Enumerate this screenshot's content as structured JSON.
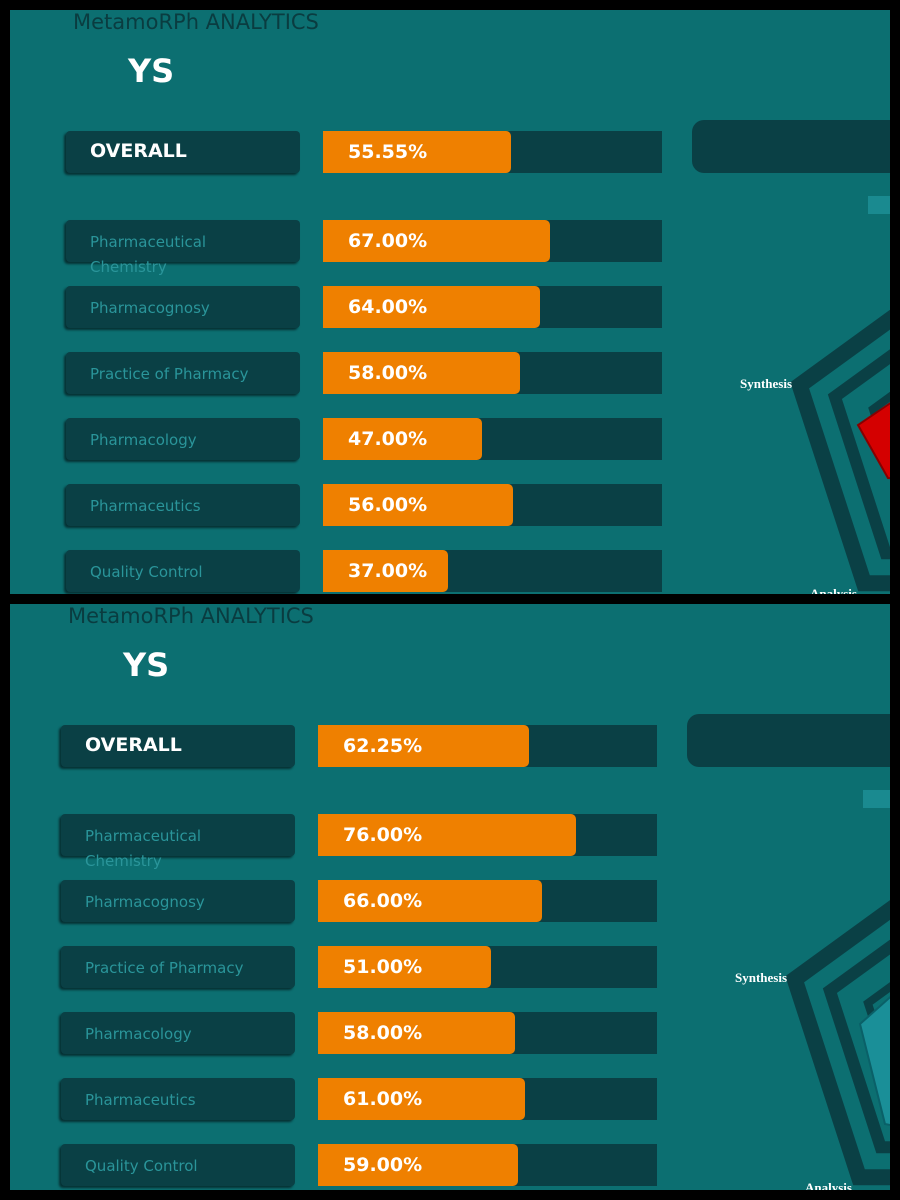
{
  "panels": [
    {
      "brand": "MetamoRPh ANALYTICS",
      "name": "YS",
      "overall": {
        "label": "OVERALL",
        "value": 55.55,
        "value_label": "55.55%"
      },
      "subjects": [
        {
          "label": "Pharmaceutical Chemistry",
          "value": 67,
          "value_label": "67.00%"
        },
        {
          "label": "Pharmacognosy",
          "value": 64,
          "value_label": "64.00%"
        },
        {
          "label": "Practice of Pharmacy",
          "value": 58,
          "value_label": "58.00%"
        },
        {
          "label": "Pharmacology",
          "value": 47,
          "value_label": "47.00%"
        },
        {
          "label": "Pharmaceutics",
          "value": 56,
          "value_label": "56.00%"
        },
        {
          "label": "Quality Control",
          "value": 37,
          "value_label": "37.00%"
        }
      ],
      "radar_labels": [
        "Synthesis",
        "Analysis"
      ]
    },
    {
      "brand": "MetamoRPh ANALYTICS",
      "name": "YS",
      "overall": {
        "label": "OVERALL",
        "value": 62.25,
        "value_label": "62.25%"
      },
      "subjects": [
        {
          "label": "Pharmaceutical Chemistry",
          "value": 76,
          "value_label": "76.00%"
        },
        {
          "label": "Pharmacognosy",
          "value": 66,
          "value_label": "66.00%"
        },
        {
          "label": "Practice of Pharmacy",
          "value": 51,
          "value_label": "51.00%"
        },
        {
          "label": "Pharmacology",
          "value": 58,
          "value_label": "58.00%"
        },
        {
          "label": "Pharmaceutics",
          "value": 61,
          "value_label": "61.00%"
        },
        {
          "label": "Quality Control",
          "value": 59,
          "value_label": "59.00%"
        }
      ],
      "radar_labels": [
        "Synthesis",
        "Analysis"
      ]
    }
  ]
}
